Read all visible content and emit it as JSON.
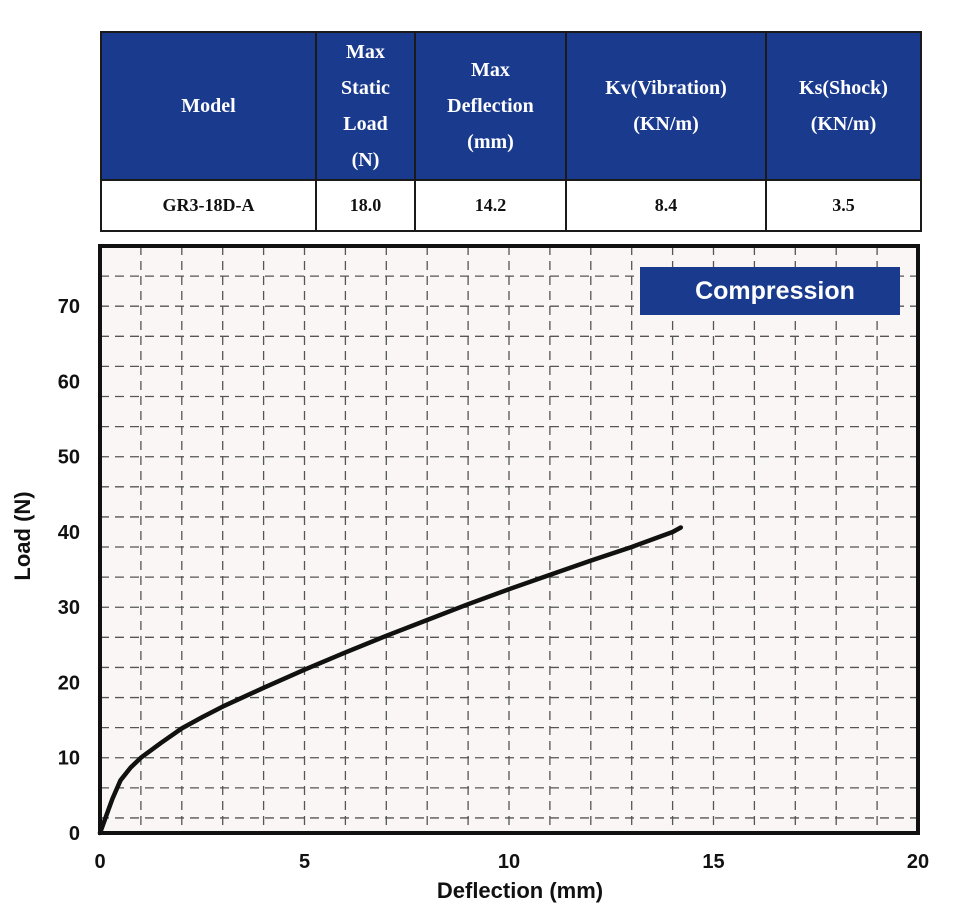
{
  "table": {
    "headers": [
      "Model",
      "Max Static Load (N)",
      "Max Deflection (mm)",
      "Kv(Vibration) (KN/m)",
      "Ks(Shock) (KN/m)"
    ],
    "header_lines": [
      [
        "Model"
      ],
      [
        "Max",
        "Static",
        "Load",
        "(N)"
      ],
      [
        "Max",
        "Deflection",
        "(mm)"
      ],
      [
        "Kv(Vibration)",
        "(KN/m)"
      ],
      [
        "Ks(Shock)",
        "(KN/m)"
      ]
    ],
    "row": {
      "model": "GR3-18D-A",
      "max_static_load": "18.0",
      "max_deflection": "14.2",
      "kv": "8.4",
      "ks": "3.5"
    },
    "header_bg": "#1a3a8e"
  },
  "chart_data": {
    "type": "line",
    "badge": "Compression",
    "xlabel": "Deflection (mm)",
    "ylabel": "Load (N)",
    "xlim": [
      0,
      20
    ],
    "ylim": [
      0,
      78
    ],
    "xticks": [
      0,
      5,
      10,
      15,
      20
    ],
    "yticks": [
      0,
      10,
      20,
      30,
      40,
      50,
      60,
      70
    ],
    "grid": true,
    "series": [
      {
        "name": "",
        "x": [
          0,
          0.1,
          0.2,
          0.3,
          0.5,
          0.75,
          1,
          1.5,
          2,
          2.5,
          3,
          4,
          5,
          6,
          7,
          8,
          9,
          10,
          11,
          12,
          13,
          14,
          14.2
        ],
        "y": [
          0,
          1.5,
          3,
          4.5,
          7,
          8.7,
          10,
          12,
          13.9,
          15.4,
          16.8,
          19.3,
          21.7,
          24,
          26.2,
          28.3,
          30.4,
          32.4,
          34.3,
          36.2,
          38,
          40,
          40.6
        ],
        "color": "#111111"
      }
    ],
    "colors": {
      "badge_bg": "#1a3a8e",
      "plot_bg": "#faf6f5",
      "grid": "#555555"
    }
  }
}
